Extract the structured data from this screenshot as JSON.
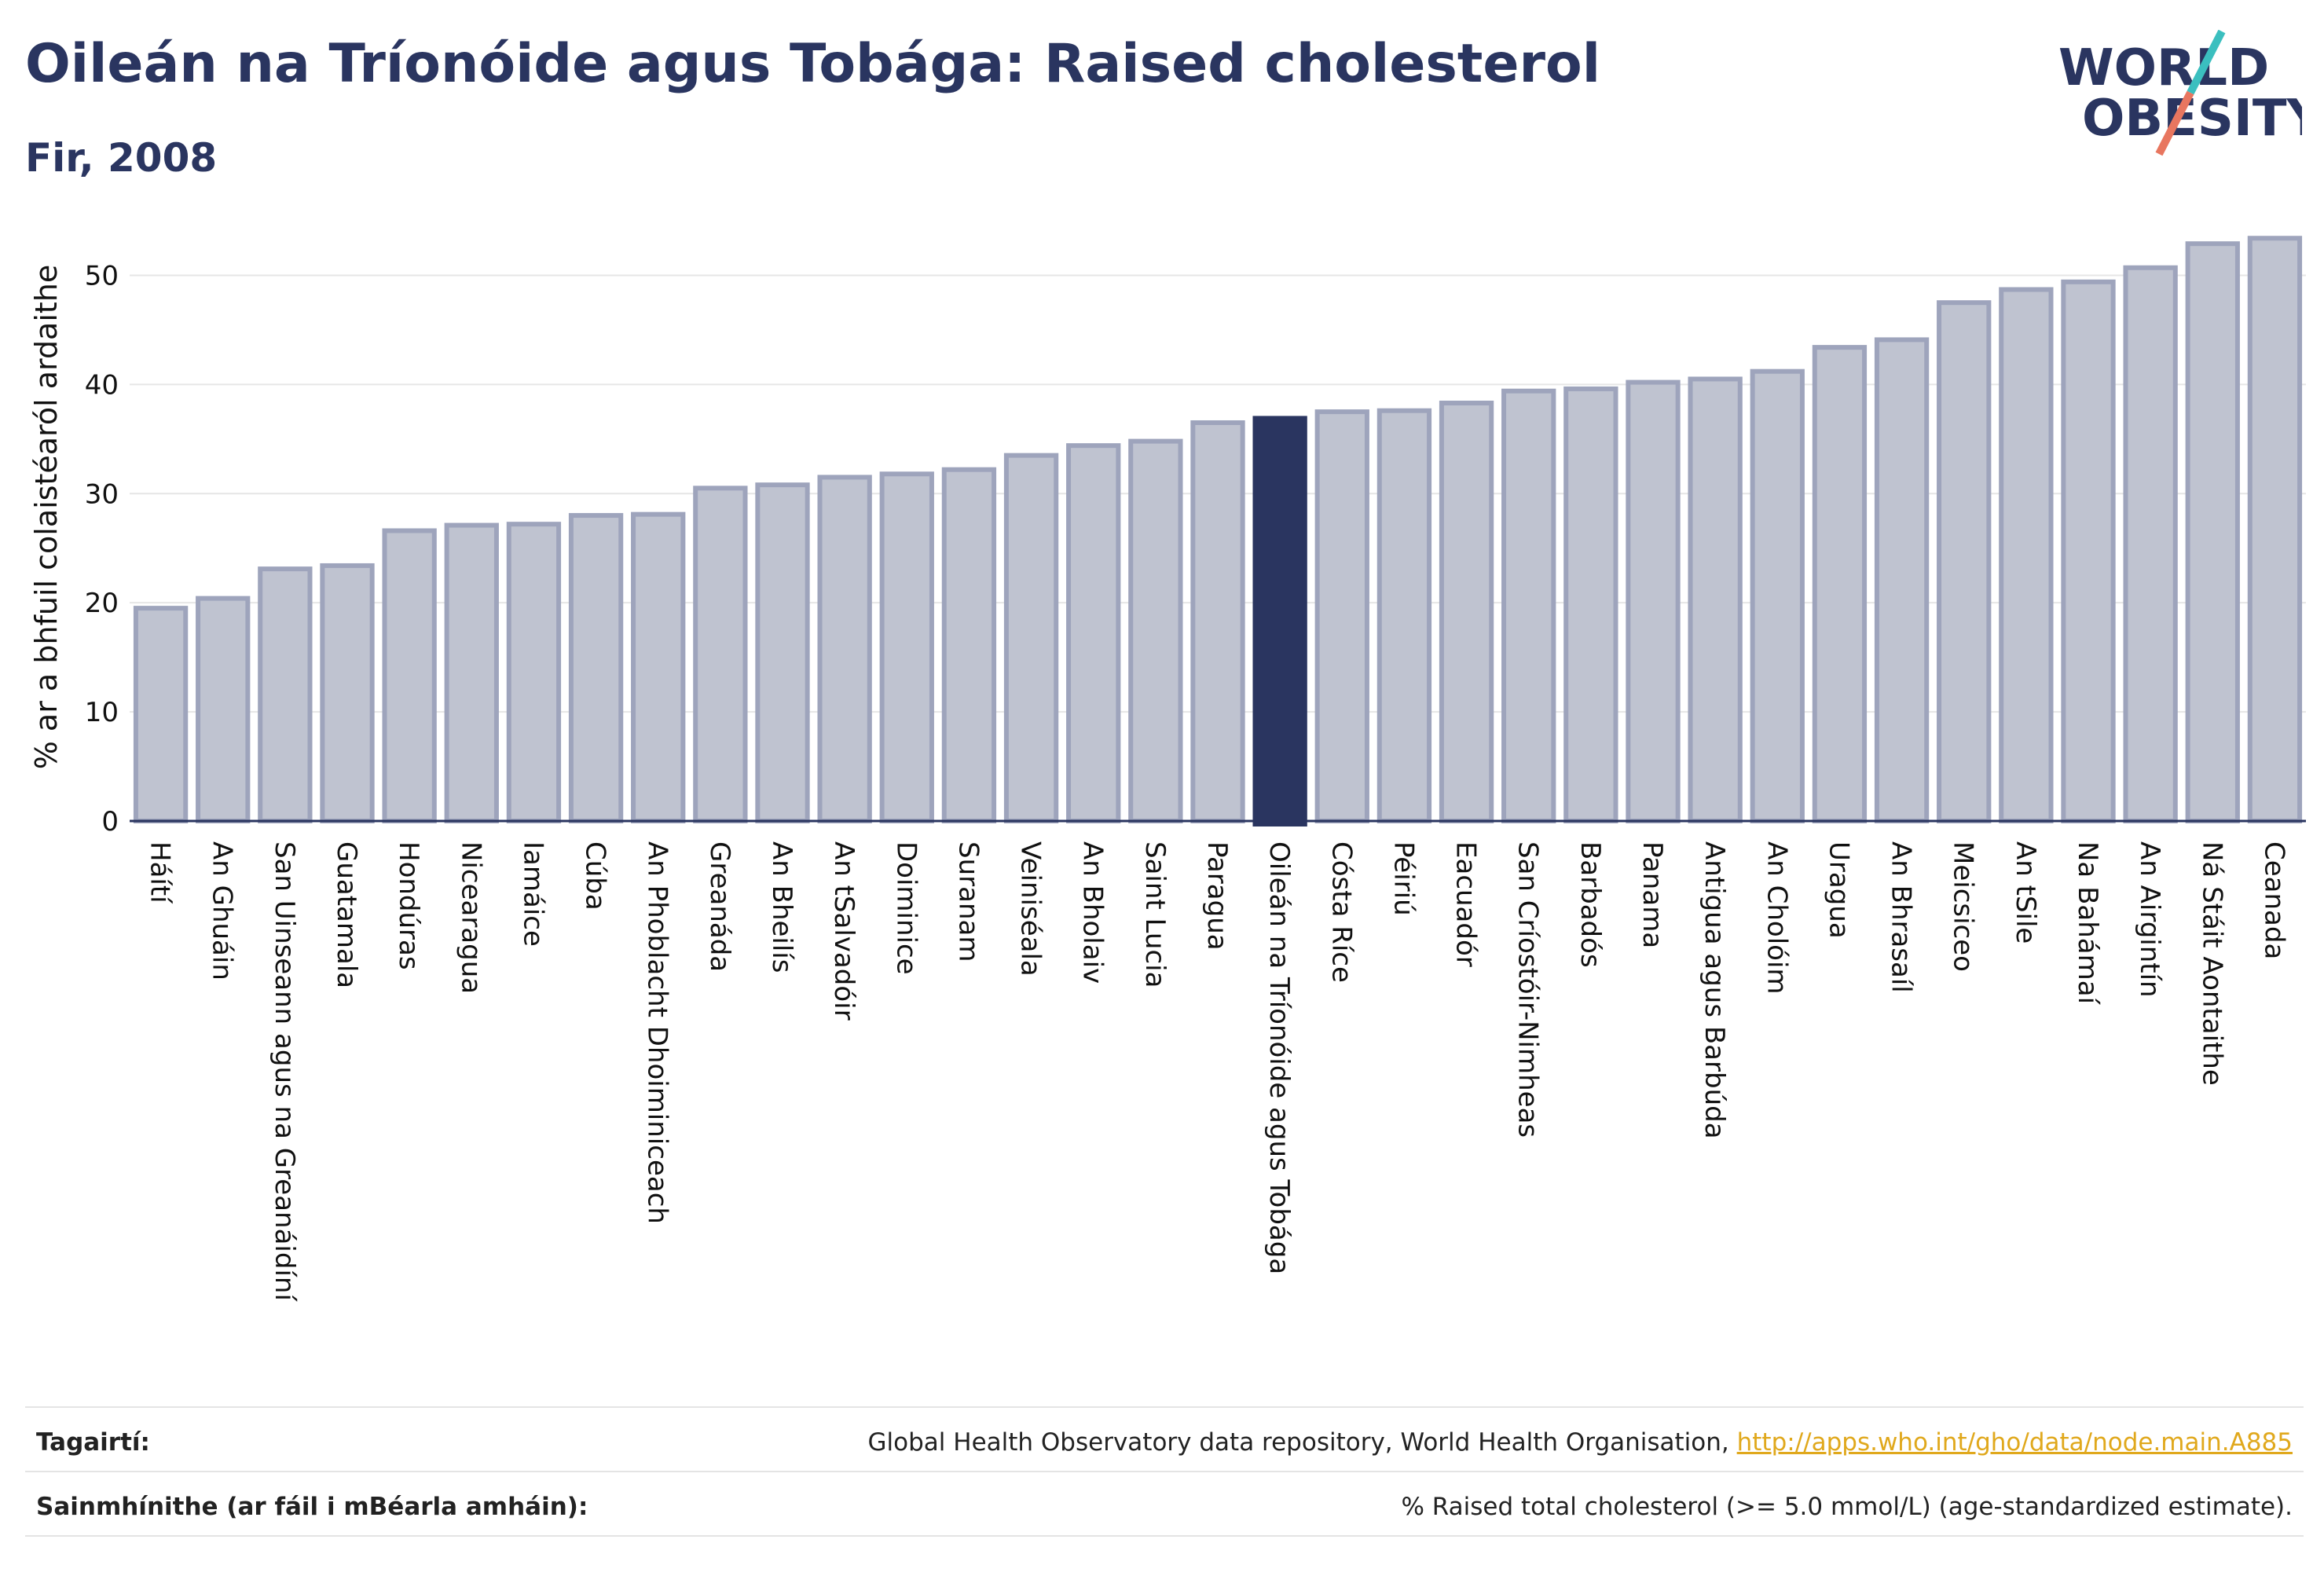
{
  "header": {
    "title": "Oileán na Tríonóide agus Tobága: Raised cholesterol",
    "subtitle": "Fir, 2008"
  },
  "logo": {
    "line1": "WORLD",
    "line2": "OBESITY",
    "colors": {
      "text": "#2a3560",
      "slash_teal": "#3bbfbf",
      "slash_coral": "#e8765f"
    }
  },
  "chart_data": {
    "type": "bar",
    "ylabel": "% ar a bhfuil colaistéaról ardaithe",
    "xlabel": "",
    "ylim": [
      0,
      55
    ],
    "yticks": [
      0,
      10,
      20,
      30,
      40,
      50
    ],
    "grid": true,
    "highlight": "Oileán na Tríonóide agus Tobága",
    "colors": {
      "bar": "#bfc3d0",
      "bar_border": "#9ea4bc",
      "highlight": "#2a3560"
    },
    "categories": [
      "Háítí",
      "An Ghuáin",
      "San Uinseann agus na Greanáidíní",
      "Guatamala",
      "Hondúras",
      "Nicearagua",
      "Iamáice",
      "Cúba",
      "An Phoblacht Dhoiminiceach",
      "Greanáda",
      "An Bheilís",
      "An tSalvadóir",
      "Doiminice",
      "Suranam",
      "Veiniséala",
      "An Bholaiv",
      "Saint Lucia",
      "Paragua",
      "Oileán na Tríonóide agus Tobága",
      "Cósta Ríce",
      "Péiriú",
      "Eacuadór",
      "San Críostóir-Nimheas",
      "Barbadós",
      "Panama",
      "Antigua agus Barbúda",
      "An Cholóim",
      "Uragua",
      "An Bhrasaíl",
      "Meicsiceo",
      "An tSile",
      "Na Bahámaí",
      "An Airgintín",
      "Ná Stáit Aontaithe",
      "Ceanada"
    ],
    "values": [
      19.5,
      20.4,
      23.1,
      23.4,
      26.6,
      27.1,
      27.2,
      28.0,
      28.1,
      30.5,
      30.8,
      31.5,
      31.8,
      32.2,
      33.5,
      34.4,
      34.8,
      36.5,
      36.9,
      37.5,
      37.6,
      38.3,
      39.4,
      39.6,
      40.2,
      40.5,
      41.2,
      43.4,
      44.1,
      47.5,
      48.7,
      49.4,
      50.7,
      52.9,
      53.4
    ]
  },
  "footer": {
    "references_label": "Tagairtí:",
    "references_text": "Global Health Observatory data repository, World Health Organisation, ",
    "references_link": "http://apps.who.int/gho/data/node.main.A885",
    "definitions_label": "Sainmhínithe (ar fáil i mBéarla amháin):",
    "definitions_text": "% Raised total cholesterol (>= 5.0 mmol/L) (age-standardized estimate)."
  }
}
